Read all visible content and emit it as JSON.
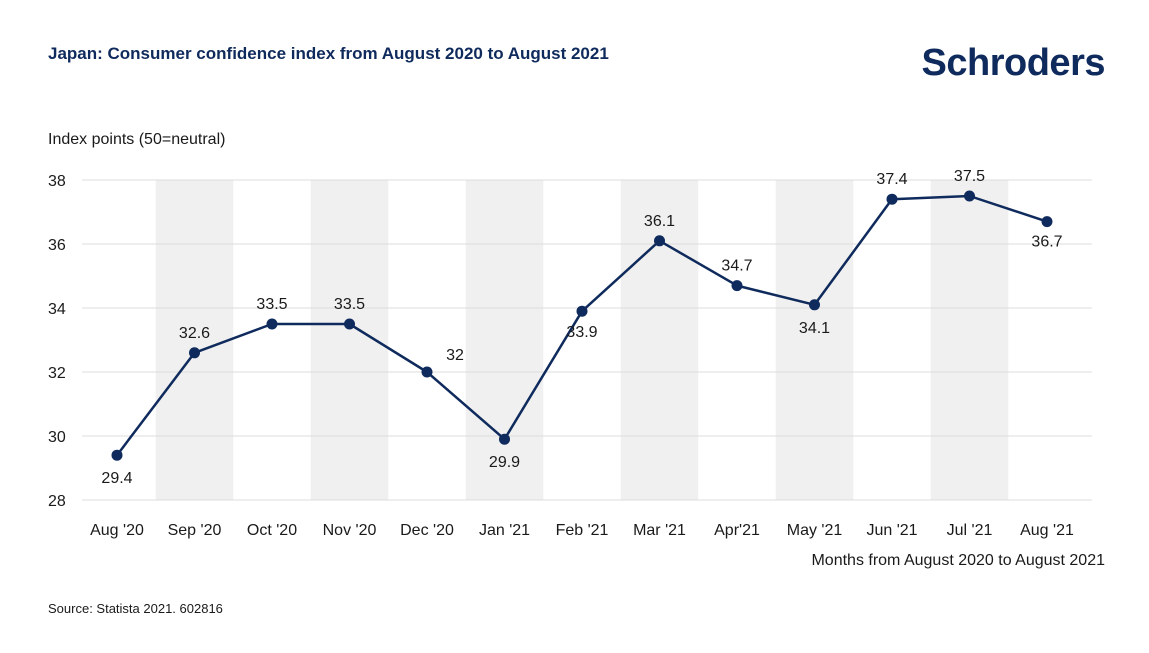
{
  "header": {
    "title": "Japan: Consumer confidence index from August 2020 to August 2021",
    "brand": "Schroders"
  },
  "footer": {
    "source": "Source: Statista 2021. 602816"
  },
  "colors": {
    "line": "#0f2a5c",
    "band": "#f0f0f0",
    "grid": "#dddddd"
  },
  "chart_data": {
    "type": "line",
    "categories": [
      "Aug '20",
      "Sep '20",
      "Oct '20",
      "Nov '20",
      "Dec '20",
      "Jan '21",
      "Feb '21",
      "Mar '21",
      "Apr'21",
      "May '21",
      "Jun '21",
      "Jul '21",
      "Aug '21"
    ],
    "values": [
      29.4,
      32.6,
      33.5,
      33.5,
      32,
      29.9,
      33.9,
      36.1,
      34.7,
      34.1,
      37.4,
      37.5,
      36.7
    ],
    "data_labels": [
      "29.4",
      "32.6",
      "33.5",
      "33.5",
      "32",
      "29.9",
      "33.9",
      "36.1",
      "34.7",
      "34.1",
      "37.4",
      "37.5",
      "36.7"
    ],
    "ylabel": "Index points (50=neutral)",
    "xlabel": "Months from August 2020 to August 2021",
    "ylim": [
      28,
      38
    ],
    "yticks": [
      28,
      30,
      32,
      34,
      36,
      38
    ],
    "grid": true,
    "alternating_bands": true
  }
}
